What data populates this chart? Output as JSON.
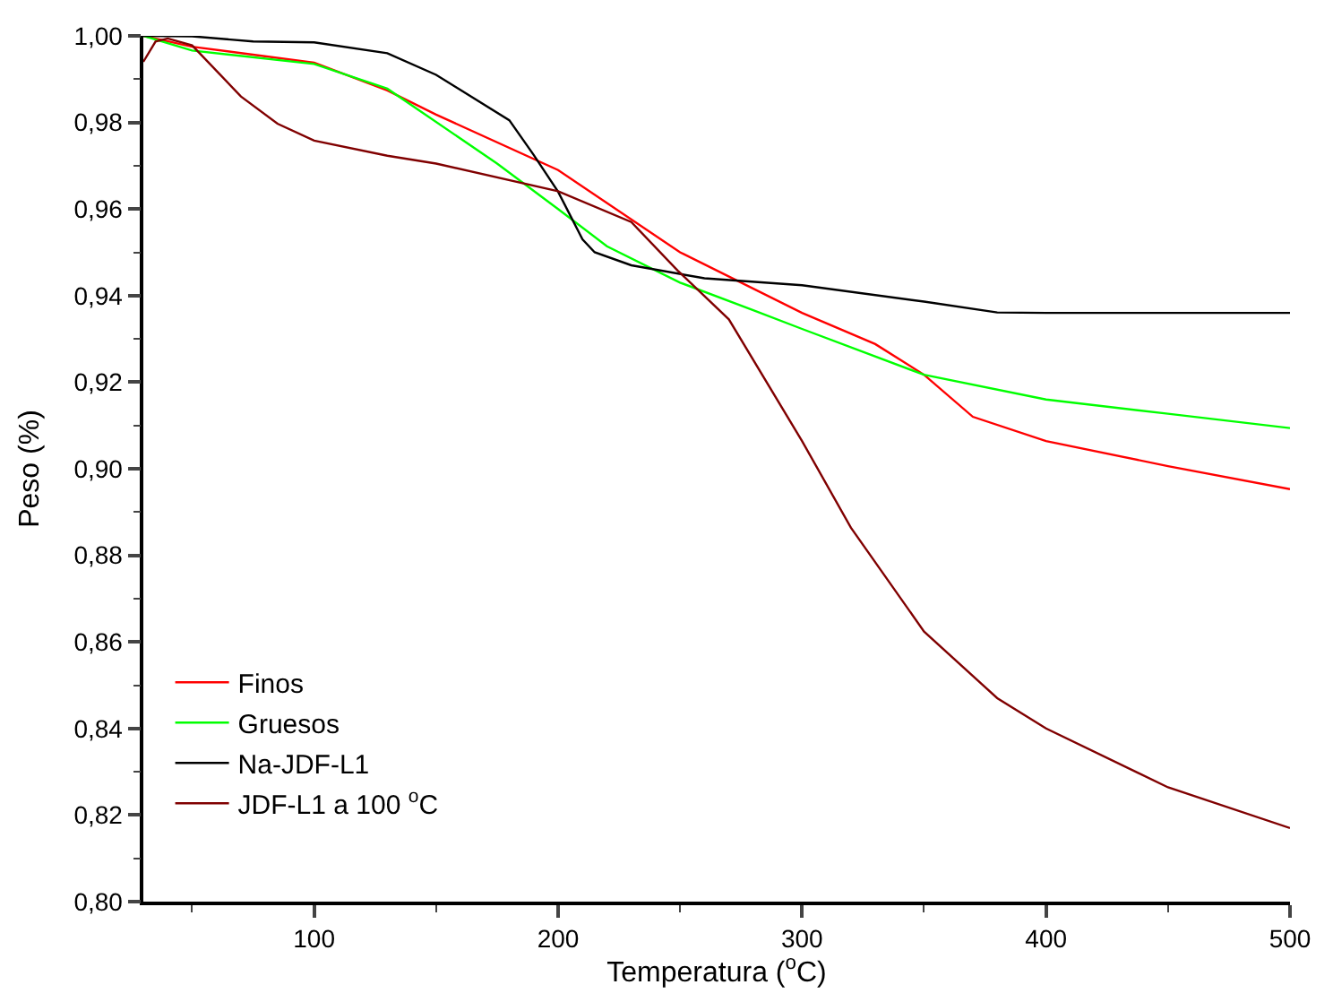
{
  "chart_data": {
    "type": "line",
    "xlabel": "Temperatura ($^{o}$C)",
    "ylabel": "Peso (%)",
    "xlim": [
      30,
      500
    ],
    "ylim": [
      0.8,
      1.0
    ],
    "xticks": [
      100,
      200,
      300,
      400,
      500
    ],
    "yticks": [
      {
        "value": 0.8,
        "label": "0,80"
      },
      {
        "value": 0.82,
        "label": "0,82"
      },
      {
        "value": 0.84,
        "label": "0,84"
      },
      {
        "value": 0.86,
        "label": "0,86"
      },
      {
        "value": 0.88,
        "label": "0,88"
      },
      {
        "value": 0.9,
        "label": "0,90"
      },
      {
        "value": 0.92,
        "label": "0,92"
      },
      {
        "value": 0.94,
        "label": "0,94"
      },
      {
        "value": 0.96,
        "label": "0,96"
      },
      {
        "value": 0.98,
        "label": "0,98"
      },
      {
        "value": 1.0,
        "label": "1,00"
      }
    ],
    "legend": "bottom left",
    "marker": "none",
    "line_style": "solid",
    "series": [
      {
        "name": "Finos",
        "color": "#ff0000",
        "x": [
          30,
          50,
          100,
          130,
          150,
          200,
          250,
          300,
          330,
          350,
          370,
          400,
          450,
          500
        ],
        "values": [
          1.0,
          0.9975,
          0.9938,
          0.9874,
          0.9818,
          0.969,
          0.95,
          0.936,
          0.9288,
          0.9217,
          0.912,
          0.9064,
          0.9006,
          0.8953
        ]
      },
      {
        "name": "Gruesos",
        "color": "#00ff00",
        "x": [
          30,
          50,
          100,
          130,
          175,
          200,
          220,
          250,
          280,
          300,
          350,
          400,
          450,
          500
        ],
        "values": [
          1.0,
          0.9966,
          0.9935,
          0.9878,
          0.9705,
          0.96,
          0.9514,
          0.943,
          0.9366,
          0.9323,
          0.9217,
          0.916,
          0.9127,
          0.9094
        ]
      },
      {
        "name": "Na-JDF-L1",
        "color": "#000000",
        "x": [
          30,
          50,
          75,
          100,
          130,
          150,
          180,
          190,
          200,
          210,
          215,
          230,
          260,
          300,
          350,
          380,
          400,
          500
        ],
        "values": [
          1.0,
          0.9999,
          0.9987,
          0.9985,
          0.996,
          0.991,
          0.9805,
          0.9725,
          0.964,
          0.953,
          0.95,
          0.947,
          0.944,
          0.9424,
          0.9386,
          0.9361,
          0.936,
          0.936
        ]
      },
      {
        "name": "JDF-L1 a 100 $^{o}$C",
        "color": "#800000",
        "x": [
          30,
          35,
          40,
          50,
          70,
          85,
          100,
          130,
          150,
          200,
          230,
          249,
          270,
          300,
          320,
          350,
          380,
          400,
          450,
          500
        ],
        "values": [
          0.994,
          0.9987,
          0.9994,
          0.9978,
          0.986,
          0.9797,
          0.9758,
          0.9723,
          0.9705,
          0.9641,
          0.957,
          0.9458,
          0.9345,
          0.9064,
          0.8864,
          0.8624,
          0.847,
          0.84,
          0.8264,
          0.817
        ]
      }
    ]
  }
}
